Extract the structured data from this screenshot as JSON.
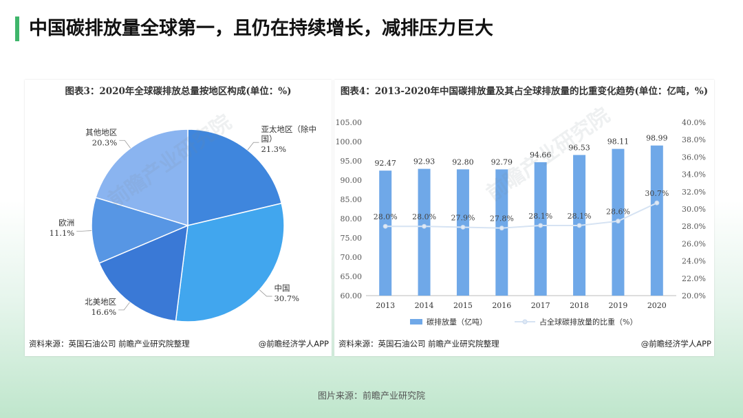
{
  "slide_title": "中国碳排放量全球第一，且仍在持续增长，减排压力巨大",
  "footer_source": "图片来源：前瞻产业研究院",
  "watermark_text": "前瞻产业研究院",
  "left_panel": {
    "title": "图表3：2020年全球碳排放总量按地区构成(单位：%)",
    "source": "资料来源：英国石油公司 前瞻产业研究院整理",
    "credit": "@前瞻经济学人APP"
  },
  "right_panel": {
    "title": "图表4：2013-2020年中国碳排放量及其占全球排放量的比重变化趋势(单位：亿吨，%)",
    "source": "资料来源：英国石油公司 前瞻产业研究院整理",
    "credit": "@前瞻经济学人APP"
  },
  "chart_data": [
    {
      "type": "pie",
      "title": "图表3：2020年全球碳排放总量按地区构成(单位：%)",
      "slices": [
        {
          "label": "亚太地区（除中国）",
          "label_lines": [
            "亚太地区（除中",
            "国）"
          ],
          "value": 21.3,
          "display": "21.3%",
          "color": "#3f86dd"
        },
        {
          "label": "中国",
          "label_lines": [
            "中国"
          ],
          "value": 30.7,
          "display": "30.7%",
          "color": "#41a6ee"
        },
        {
          "label": "北美地区",
          "label_lines": [
            "北美地区"
          ],
          "value": 16.6,
          "display": "16.6%",
          "color": "#3a79d6"
        },
        {
          "label": "欧洲",
          "label_lines": [
            "欧洲"
          ],
          "value": 11.1,
          "display": "11.1%",
          "color": "#5796e4"
        },
        {
          "label": "其他地区",
          "label_lines": [
            "其他地区"
          ],
          "value": 20.3,
          "display": "20.3%",
          "color": "#8ab4f0"
        }
      ]
    },
    {
      "type": "bar",
      "title": "图表4：2013-2020年中国碳排放量及其占全球排放量的比重变化趋势(单位：亿吨，%)",
      "categories": [
        "2013",
        "2014",
        "2015",
        "2016",
        "2017",
        "2018",
        "2019",
        "2020"
      ],
      "series": [
        {
          "name": "碳排放量（亿吨）",
          "type": "bar",
          "axis": "left",
          "color": "#6fa8e8",
          "values": [
            92.47,
            92.93,
            92.8,
            92.79,
            94.66,
            96.53,
            98.11,
            98.99
          ],
          "labels": [
            "92.47",
            "92.93",
            "92.80",
            "92.79",
            "94.66",
            "96.53",
            "98.11",
            "98.99"
          ]
        },
        {
          "name": "占全球碳排放量的比重（%）",
          "type": "line",
          "axis": "right",
          "color": "#d6e3f3",
          "values": [
            28.0,
            28.0,
            27.9,
            27.8,
            28.1,
            28.1,
            28.6,
            30.7
          ],
          "labels": [
            "28.0%",
            "28.0%",
            "27.9%",
            "27.8%",
            "28.1%",
            "28.1%",
            "28.6%",
            "30.7%"
          ]
        }
      ],
      "ylim_left": [
        60,
        105
      ],
      "yticks_left": [
        "60.00",
        "65.00",
        "70.00",
        "75.00",
        "80.00",
        "85.00",
        "90.00",
        "95.00",
        "100.00",
        "105.00"
      ],
      "ylim_right": [
        20,
        40
      ],
      "yticks_right": [
        "20.0%",
        "22.0%",
        "24.0%",
        "26.0%",
        "28.0%",
        "30.0%",
        "32.0%",
        "34.0%",
        "36.0%",
        "38.0%",
        "40.0%"
      ],
      "grid": false,
      "legend_position": "bottom"
    }
  ]
}
